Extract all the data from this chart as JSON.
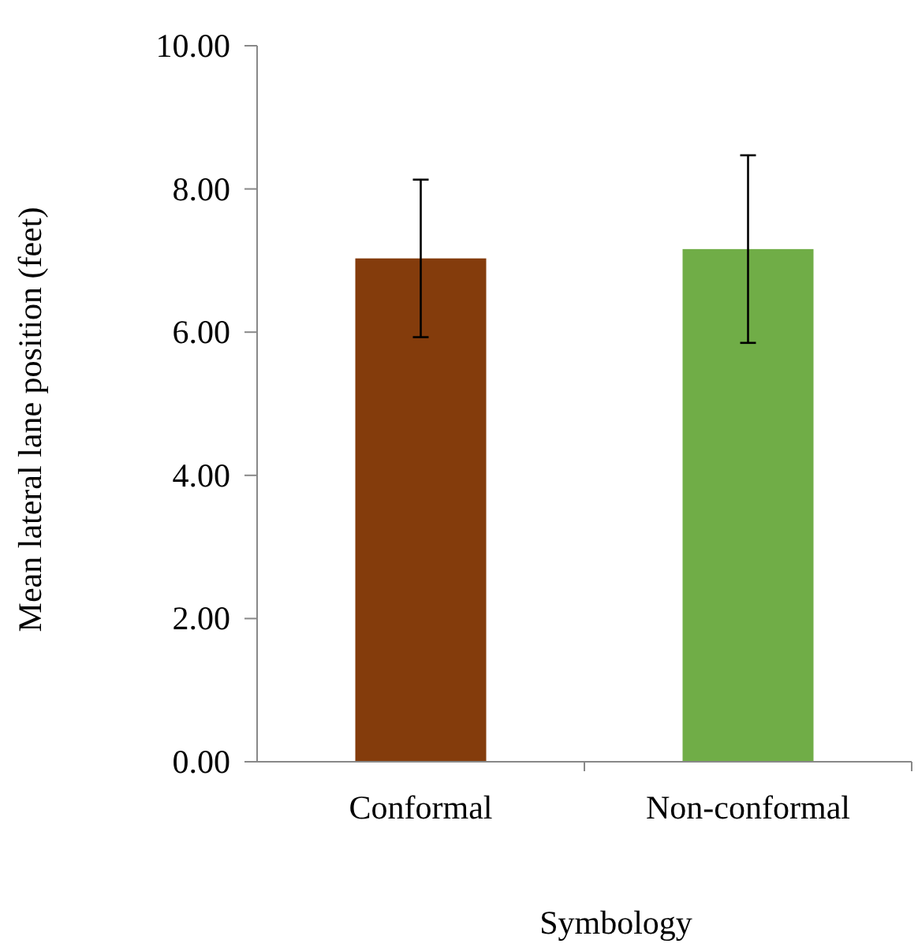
{
  "chart_data": {
    "type": "bar",
    "xlabel": "Symbology",
    "ylabel": "Mean lateral lane position (feet)",
    "categories": [
      "Conformal",
      "Non-conformal"
    ],
    "values": [
      7.03,
      7.16
    ],
    "colors": [
      "#843c0c",
      "#70ad47"
    ],
    "errors": [
      1.1,
      1.31
    ],
    "ylim": [
      0,
      10
    ],
    "yticks": [
      {
        "value": 0,
        "label": "0.00"
      },
      {
        "value": 2,
        "label": "2.00"
      },
      {
        "value": 4,
        "label": "4.00"
      },
      {
        "value": 6,
        "label": "6.00"
      },
      {
        "value": 8,
        "label": "8.00"
      },
      {
        "value": 10,
        "label": "10.00"
      }
    ]
  }
}
